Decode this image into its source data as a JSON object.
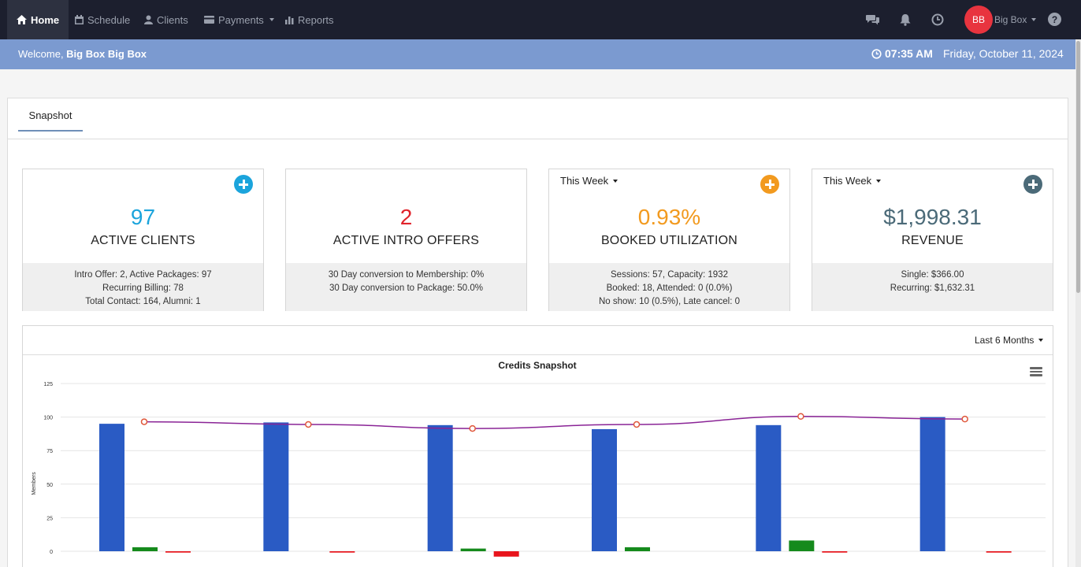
{
  "nav": {
    "items": [
      {
        "label": "Home",
        "icon": "home-icon"
      },
      {
        "label": "Schedule",
        "icon": "calendar-icon"
      },
      {
        "label": "Clients",
        "icon": "user-icon"
      },
      {
        "label": "Payments",
        "icon": "credit-card-icon"
      },
      {
        "label": "Reports",
        "icon": "bar-chart-icon"
      }
    ],
    "user": {
      "initials": "BB",
      "name": "Big Box"
    },
    "help": "?"
  },
  "welcome": {
    "prefix": "Welcome, ",
    "name": "Big Box Big Box",
    "time": "07:35 AM",
    "date": "Friday, October 11, 2024"
  },
  "tabs": [
    "Snapshot"
  ],
  "cards": [
    {
      "value": "97",
      "label": "ACTIVE CLIENTS",
      "color": "#1ba4dc",
      "button_color": "#1ba4dc",
      "footer": [
        "Intro Offer: 2, Active Packages: 97",
        "Recurring Billing: 78",
        "Total Contact: 164, Alumni: 1"
      ]
    },
    {
      "value": "2",
      "label": "ACTIVE INTRO OFFERS",
      "color": "#e0232b",
      "footer": [
        "30 Day conversion to Membership: 0%",
        "30 Day conversion to Package: 50.0%"
      ]
    },
    {
      "period": "This Week",
      "value": "0.93%",
      "label": "BOOKED UTILIZATION",
      "color": "#f29a1f",
      "button_color": "#f29a1f",
      "footer": [
        "Sessions: 57, Capacity: 1932",
        "Booked: 18, Attended: 0 (0.0%)",
        "No show: 10 (0.5%), Late cancel: 0"
      ]
    },
    {
      "period": "This Week",
      "value": "$1,998.31",
      "label": "REVENUE",
      "color": "#4b6a78",
      "button_color": "#4b6a78",
      "footer": [
        "Single: $366.00",
        "Recurring: $1,632.31"
      ]
    }
  ],
  "chart_controls": {
    "range": "Last 6 Months"
  },
  "chart_data": {
    "type": "bar",
    "title": "Credits Snapshot",
    "ylabel": "Members",
    "ylim": [
      0,
      125
    ],
    "yticks": [
      0,
      25,
      50,
      75,
      100,
      125
    ],
    "group_count": 6,
    "series": [
      {
        "type": "bar",
        "color": "#2a5bc4",
        "values": [
          95,
          96,
          94,
          91,
          94,
          100
        ]
      },
      {
        "type": "bar",
        "color": "#158a1c",
        "values": [
          3,
          0,
          2,
          3,
          8,
          0
        ]
      },
      {
        "type": "bar",
        "color": "#e8141c",
        "values": [
          -1,
          -1,
          -4,
          0,
          -1,
          -1
        ]
      },
      {
        "type": "line",
        "color": "#8a2496",
        "marker_color": "#e0583c",
        "values": [
          96.5,
          94.5,
          91.5,
          94.5,
          100.5,
          98.5
        ]
      }
    ],
    "grid": true,
    "legend": "none"
  }
}
